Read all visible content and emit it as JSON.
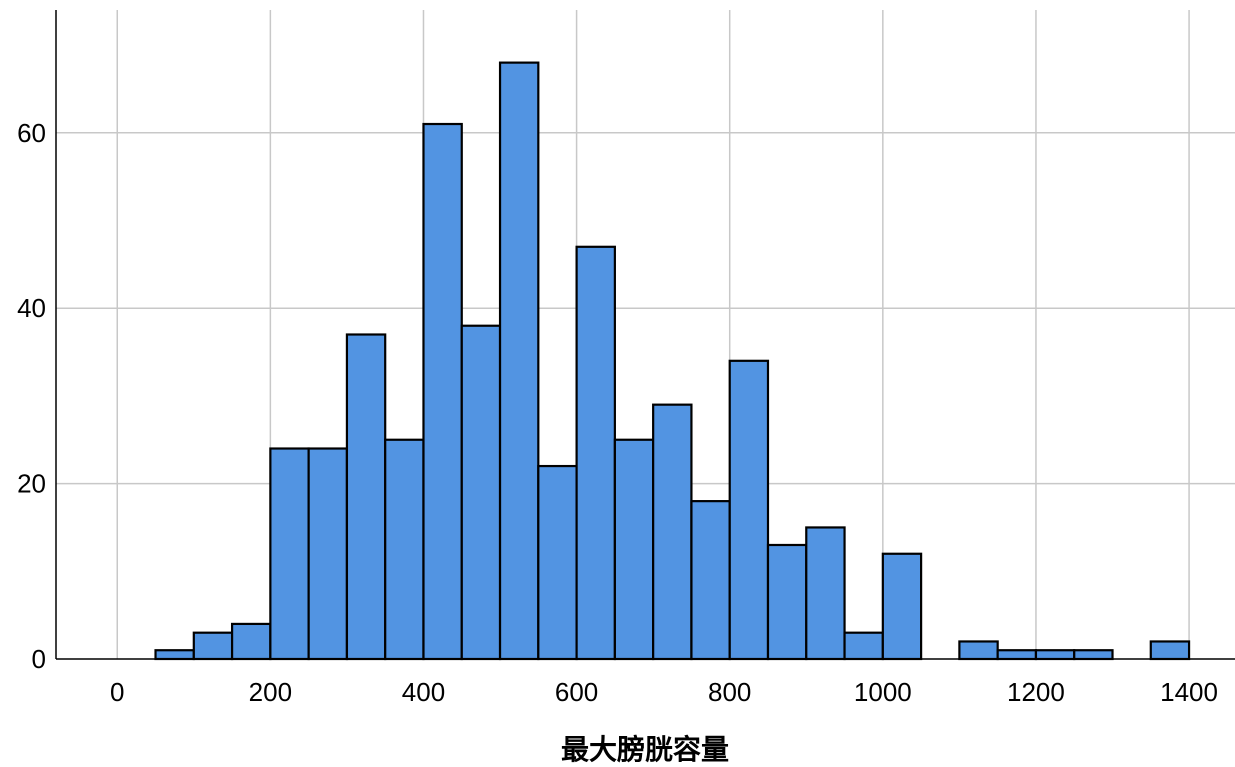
{
  "chart_data": {
    "type": "bar",
    "title": "",
    "xlabel": "最大膀胱容量",
    "ylabel": "",
    "bin_width": 50,
    "bins": [
      {
        "start": 50,
        "end": 100,
        "count": 1
      },
      {
        "start": 100,
        "end": 150,
        "count": 3
      },
      {
        "start": 150,
        "end": 200,
        "count": 4
      },
      {
        "start": 200,
        "end": 250,
        "count": 24
      },
      {
        "start": 250,
        "end": 300,
        "count": 24
      },
      {
        "start": 300,
        "end": 350,
        "count": 37
      },
      {
        "start": 350,
        "end": 400,
        "count": 25
      },
      {
        "start": 400,
        "end": 450,
        "count": 61
      },
      {
        "start": 450,
        "end": 500,
        "count": 38
      },
      {
        "start": 500,
        "end": 550,
        "count": 68
      },
      {
        "start": 550,
        "end": 600,
        "count": 22
      },
      {
        "start": 600,
        "end": 650,
        "count": 47
      },
      {
        "start": 650,
        "end": 700,
        "count": 25
      },
      {
        "start": 700,
        "end": 750,
        "count": 29
      },
      {
        "start": 750,
        "end": 800,
        "count": 18
      },
      {
        "start": 800,
        "end": 850,
        "count": 34
      },
      {
        "start": 850,
        "end": 900,
        "count": 13
      },
      {
        "start": 900,
        "end": 950,
        "count": 15
      },
      {
        "start": 950,
        "end": 1000,
        "count": 3
      },
      {
        "start": 1000,
        "end": 1050,
        "count": 12
      },
      {
        "start": 1100,
        "end": 1150,
        "count": 2
      },
      {
        "start": 1150,
        "end": 1200,
        "count": 1
      },
      {
        "start": 1200,
        "end": 1250,
        "count": 1
      },
      {
        "start": 1250,
        "end": 1300,
        "count": 1
      },
      {
        "start": 1350,
        "end": 1400,
        "count": 2
      }
    ],
    "xlim": [
      -80,
      1460
    ],
    "ylim": [
      0,
      74
    ],
    "x_ticks": [
      0,
      200,
      400,
      600,
      800,
      1000,
      1200,
      1400
    ],
    "x_tick_labels": [
      "0",
      "200",
      "400",
      "600",
      "800",
      "1000",
      "1200",
      "1400"
    ],
    "y_ticks": [
      0,
      20,
      40,
      60
    ],
    "y_tick_labels": [
      "0",
      "20",
      "40",
      "60"
    ],
    "grid": true,
    "colors": {
      "bar_fill": "#5294E2",
      "bar_stroke": "#000000",
      "grid": "#C8C8C8",
      "axis": "#000000",
      "background": "#FFFFFF"
    }
  }
}
